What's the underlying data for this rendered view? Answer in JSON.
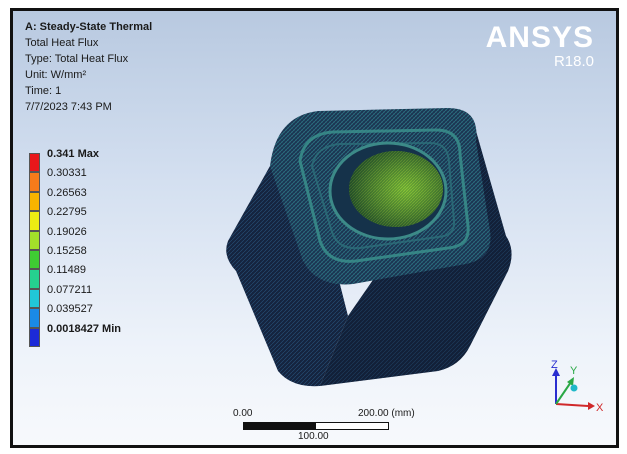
{
  "header": {
    "analysis": "A: Steady-State Thermal",
    "result": "Total Heat Flux",
    "type": "Type: Total Heat Flux",
    "unit": "Unit: W/mm²",
    "time": "Time: 1",
    "date": "7/7/2023 7:43 PM"
  },
  "brand": {
    "name": "ANSYS",
    "version": "R18.0"
  },
  "legend": [
    {
      "label": "0.341 Max",
      "color": "#e8171b",
      "bold": true
    },
    {
      "label": "0.30331",
      "color": "#f77b1a",
      "bold": false
    },
    {
      "label": "0.26563",
      "color": "#f8b400",
      "bold": false
    },
    {
      "label": "0.22795",
      "color": "#eded13",
      "bold": false
    },
    {
      "label": "0.19026",
      "color": "#a3e02a",
      "bold": false
    },
    {
      "label": "0.15258",
      "color": "#3fcc33",
      "bold": false
    },
    {
      "label": "0.11489",
      "color": "#25d18f",
      "bold": false
    },
    {
      "label": "0.077211",
      "color": "#21c7d8",
      "bold": false
    },
    {
      "label": "0.039527",
      "color": "#1a8ae6",
      "bold": false
    },
    {
      "label": "0.0018427 Min",
      "color": "#1c2ad8",
      "bold": true
    }
  ],
  "scale": {
    "left": "0.00",
    "right": "200.00 (mm)",
    "mid": "100.00"
  },
  "triad": {
    "x": "X",
    "y": "Y",
    "z": "Z"
  }
}
